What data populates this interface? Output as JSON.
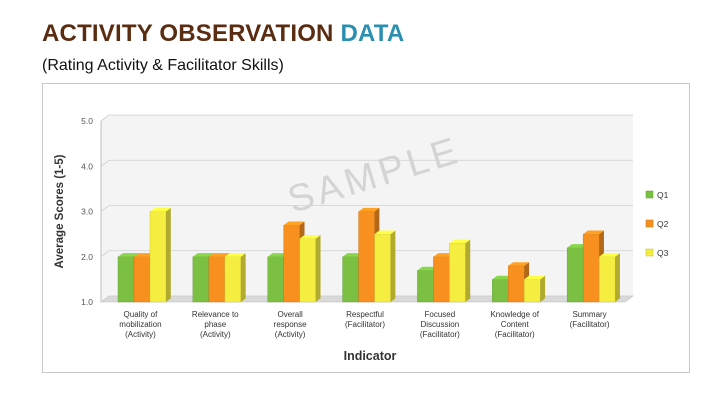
{
  "title": {
    "main": "ACTIVITY OBSERVATION ",
    "accent": "DATA",
    "subtitle": "(Rating Activity & Facilitator Skills)"
  },
  "watermark": "SAMPLE",
  "colors": {
    "title_brown": "#5a2d12",
    "title_accent": "#2a8fb0",
    "Q1": "#7bc043",
    "Q2": "#f7901e",
    "Q3": "#f5ee40"
  },
  "chart_data": {
    "type": "bar",
    "style": "3d-clustered-column",
    "categories": [
      [
        "Quality of",
        "mobilization",
        "(Activity)"
      ],
      [
        "Relevance to",
        "phase",
        "(Activity)"
      ],
      [
        "Overall",
        "response",
        "(Activity)"
      ],
      [
        "Respectful",
        "(Facilitator)"
      ],
      [
        "Focused",
        "Discussion",
        "(Facilitator)"
      ],
      [
        "Knowledge of",
        "Content",
        "(Facilitator)"
      ],
      [
        "Summary",
        "(Facilitator)"
      ]
    ],
    "series": [
      {
        "name": "Q1",
        "values": [
          2.0,
          2.0,
          2.0,
          2.0,
          1.7,
          1.5,
          2.2
        ]
      },
      {
        "name": "Q2",
        "values": [
          2.0,
          2.0,
          2.7,
          3.0,
          2.0,
          1.8,
          2.5
        ]
      },
      {
        "name": "Q3",
        "values": [
          3.0,
          2.0,
          2.4,
          2.5,
          2.3,
          1.5,
          2.0
        ]
      }
    ],
    "xlabel": "Indicator",
    "ylabel": "Average Scores (1-5)",
    "ylim": [
      1.0,
      5.0
    ],
    "yticks": [
      "1.0",
      "2.0",
      "3.0",
      "4.0",
      "5.0"
    ],
    "grid": true,
    "legend_position": "right"
  }
}
